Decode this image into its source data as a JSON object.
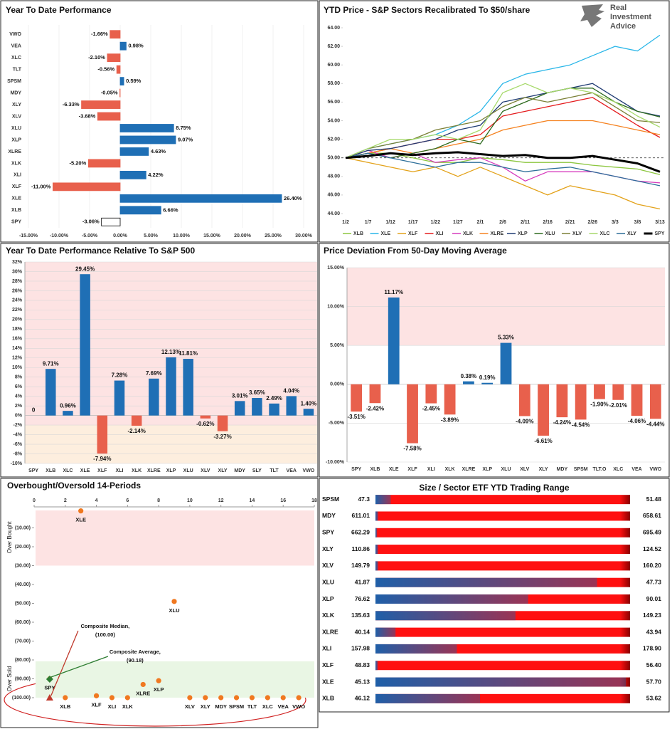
{
  "logo": [
    "Real",
    "Investment",
    "Advice"
  ],
  "chart_data": [
    {
      "type": "bar",
      "orientation": "horizontal",
      "title": "Year To Date Performance",
      "categories": [
        "VWO",
        "VEA",
        "XLC",
        "TLT",
        "SPSM",
        "MDY",
        "XLY",
        "XLV",
        "XLU",
        "XLP",
        "XLRE",
        "XLK",
        "XLI",
        "XLF",
        "XLE",
        "XLB",
        "SPY"
      ],
      "values": [
        -1.66,
        0.98,
        -2.1,
        -0.56,
        0.59,
        -0.05,
        -6.33,
        -3.68,
        8.75,
        9.07,
        4.63,
        -5.2,
        4.22,
        -11.0,
        26.4,
        6.66,
        -3.06
      ],
      "value_labels": [
        "-1.66%",
        "0.98%",
        "-2.10%",
        "-0.56%",
        "0.59%",
        "-0.05%",
        "-6.33%",
        "-3.68%",
        "8.75%",
        "9.07%",
        "4.63%",
        "-5.20%",
        "4.22%",
        "-11.00%",
        "26.40%",
        "6.66%",
        "-3.06%"
      ],
      "colors": [
        "#e8604c",
        "#1f6fb5",
        "#e8604c",
        "#e8604c",
        "#1f6fb5",
        "#e8604c",
        "#e8604c",
        "#e8604c",
        "#1f6fb5",
        "#1f6fb5",
        "#1f6fb5",
        "#e8604c",
        "#1f6fb5",
        "#e8604c",
        "#1f6fb5",
        "#1f6fb5",
        "#ffffff"
      ],
      "xlim": [
        -15,
        30
      ],
      "xticks": [
        {
          "value": -15,
          "label": "-15.00%"
        },
        {
          "value": -10,
          "label": "-10.00%"
        },
        {
          "value": -5,
          "label": "-5.00%"
        },
        {
          "value": 0,
          "label": "0.00%"
        },
        {
          "value": 5,
          "label": "5.00%"
        },
        {
          "value": 10,
          "label": "10.00%"
        },
        {
          "value": 15,
          "label": "15.00%"
        },
        {
          "value": 20,
          "label": "20.00%"
        },
        {
          "value": 25,
          "label": "25.00%"
        },
        {
          "value": 30,
          "label": "30.00%"
        }
      ],
      "grid": true
    },
    {
      "type": "line",
      "title": "YTD Price - S&P Sectors Recalibrated To $50/share",
      "x": [
        "1/2",
        "1/7",
        "1/12",
        "1/17",
        "1/22",
        "1/27",
        "2/1",
        "2/6",
        "2/11",
        "2/16",
        "2/21",
        "2/26",
        "3/3",
        "3/8",
        "3/13"
      ],
      "ylim": [
        44,
        64
      ],
      "yticks": [
        {
          "value": 44,
          "label": "44.00"
        },
        {
          "value": 46,
          "label": "46.00"
        },
        {
          "value": 48,
          "label": "48.00"
        },
        {
          "value": 50,
          "label": "50.00"
        },
        {
          "value": 52,
          "label": "52.00"
        },
        {
          "value": 54,
          "label": "54.00"
        },
        {
          "value": 56,
          "label": "56.00"
        },
        {
          "value": 58,
          "label": "58.00"
        },
        {
          "value": 60,
          "label": "60.00"
        },
        {
          "value": 62,
          "label": "62.00"
        },
        {
          "value": 64,
          "label": "64.00"
        }
      ],
      "reference_line": 50,
      "series": [
        {
          "name": "XLB",
          "color": "#8cc63f",
          "values": [
            50,
            50.5,
            50.5,
            50,
            49.5,
            49.5,
            50,
            49.8,
            49.5,
            49.5,
            49.5,
            49.2,
            49,
            48.8,
            48.2
          ]
        },
        {
          "name": "XLE",
          "color": "#29b6e8",
          "values": [
            50,
            51,
            51.5,
            52,
            52.5,
            53.5,
            55,
            58,
            59,
            59.5,
            60,
            61,
            62,
            61.5,
            63.2
          ]
        },
        {
          "name": "XLF",
          "color": "#e3a21a",
          "values": [
            50,
            49.5,
            49,
            48.5,
            49,
            48,
            49,
            48,
            47,
            46,
            47,
            46.5,
            46,
            45,
            44.5
          ]
        },
        {
          "name": "XLI",
          "color": "#e41a1c",
          "values": [
            50,
            50.5,
            51,
            51.5,
            52,
            52,
            52.5,
            54.5,
            55,
            55.5,
            56,
            56.5,
            55,
            53.5,
            52.2
          ]
        },
        {
          "name": "XLK",
          "color": "#d63bbd",
          "values": [
            50,
            50.8,
            50,
            50.5,
            49.5,
            49.8,
            50,
            49,
            47.5,
            48.5,
            48.5,
            48.5,
            48,
            47.5,
            47.3
          ]
        },
        {
          "name": "XLRE",
          "color": "#f58220",
          "values": [
            50,
            50.5,
            51,
            50.5,
            51,
            51.5,
            52,
            53,
            53.5,
            54,
            54,
            54,
            53.5,
            53,
            52.5
          ]
        },
        {
          "name": "XLP",
          "color": "#1f3b73",
          "values": [
            50,
            50.8,
            51,
            51.5,
            52,
            53,
            53.5,
            56,
            56.5,
            57,
            57.5,
            58,
            56.5,
            55,
            54.5
          ]
        },
        {
          "name": "XLU",
          "color": "#2e6b1f",
          "values": [
            50,
            50.5,
            50,
            50.5,
            51,
            52,
            51.5,
            55,
            56,
            57,
            57.5,
            57.5,
            56,
            55,
            54.4
          ]
        },
        {
          "name": "XLV",
          "color": "#7a7f35",
          "values": [
            50,
            51,
            51.5,
            52,
            53,
            53.5,
            54,
            55.5,
            56.5,
            56,
            56.5,
            57,
            55.5,
            54,
            53.8
          ]
        },
        {
          "name": "XLC",
          "color": "#a6d96a",
          "values": [
            50,
            51,
            52,
            52,
            52.5,
            52,
            53,
            57,
            58,
            57,
            57.5,
            57,
            56,
            54.5,
            53.3
          ]
        },
        {
          "name": "XLY",
          "color": "#2c6e99",
          "values": [
            50,
            50.5,
            50,
            49.5,
            49,
            49.5,
            49.5,
            49,
            48.5,
            48.8,
            49,
            48.5,
            48,
            47.5,
            47.0
          ]
        },
        {
          "name": "SPY",
          "color": "#000000",
          "linewidth": 3,
          "values": [
            50,
            50.2,
            50.5,
            50.3,
            50.5,
            50.6,
            50.4,
            50.2,
            50.3,
            50,
            50,
            50.2,
            49.8,
            49.4,
            48.5
          ]
        }
      ]
    },
    {
      "type": "bar",
      "title": "Year To Date Performance Relative To S&P 500",
      "categories": [
        "SPY",
        "XLB",
        "XLC",
        "XLE",
        "XLF",
        "XLI",
        "XLK",
        "XLRE",
        "XLP",
        "XLU",
        "XLV",
        "XLY",
        "MDY",
        "SLY",
        "TLT",
        "VEA",
        "VWO"
      ],
      "values": [
        0,
        9.71,
        0.96,
        29.45,
        -7.94,
        7.28,
        -2.14,
        7.69,
        12.13,
        11.81,
        -0.62,
        -3.27,
        3.01,
        3.65,
        2.49,
        4.04,
        1.4
      ],
      "value_labels": [
        "0",
        "9.71%",
        "0.96%",
        "29.45%",
        "-7.94%",
        "7.28%",
        "-2.14%",
        "7.69%",
        "12.13%",
        "11.81%",
        "-0.62%",
        "-3.27%",
        "3.01%",
        "3.65%",
        "2.49%",
        "4.04%",
        "1.40%"
      ],
      "positive_color": "#1f6fb5",
      "negative_color": "#e8604c",
      "ylim": [
        -10,
        32
      ],
      "yticks": [
        {
          "value": -10,
          "label": "-10%"
        },
        {
          "value": -8,
          "label": "-8%"
        },
        {
          "value": -6,
          "label": "-6%"
        },
        {
          "value": -4,
          "label": "-4%"
        },
        {
          "value": -2,
          "label": "-2%"
        },
        {
          "value": 0,
          "label": "0%"
        },
        {
          "value": 2,
          "label": "2%"
        },
        {
          "value": 4,
          "label": "4%"
        },
        {
          "value": 6,
          "label": "6%"
        },
        {
          "value": 8,
          "label": "8%"
        },
        {
          "value": 10,
          "label": "10%"
        },
        {
          "value": 12,
          "label": "12%"
        },
        {
          "value": 14,
          "label": "14%"
        },
        {
          "value": 16,
          "label": "16%"
        },
        {
          "value": 18,
          "label": "18%"
        },
        {
          "value": 20,
          "label": "20%"
        },
        {
          "value": 22,
          "label": "22%"
        },
        {
          "value": 24,
          "label": "24%"
        },
        {
          "value": 26,
          "label": "26%"
        },
        {
          "value": 28,
          "label": "28%"
        },
        {
          "value": 30,
          "label": "30%"
        },
        {
          "value": 32,
          "label": "32%"
        }
      ],
      "bands": [
        {
          "from": -2,
          "to": 32,
          "color": "#fde3e3"
        },
        {
          "from": -10,
          "to": -2,
          "color": "#fdeede"
        }
      ],
      "grid": true
    },
    {
      "type": "bar",
      "title": "Price Deviation From 50-Day Moving Average",
      "categories": [
        "SPY",
        "XLB",
        "XLE",
        "XLF",
        "XLI",
        "XLK",
        "XLRE",
        "XLP",
        "XLU",
        "XLV",
        "XLY",
        "MDY",
        "SPSM",
        "TLT.O",
        "XLC",
        "VEA",
        "VWO"
      ],
      "values": [
        -3.51,
        -2.42,
        11.17,
        -7.58,
        -2.45,
        -3.89,
        0.38,
        0.19,
        5.33,
        -4.09,
        -6.61,
        -4.24,
        -4.54,
        -1.9,
        -2.01,
        -4.06,
        -4.44
      ],
      "value_labels": [
        "-3.51%",
        "-2.42%",
        "11.17%",
        "-7.58%",
        "-2.45%",
        "-3.89%",
        "0.38%",
        "0.19%",
        "5.33%",
        "-4.09%",
        "-6.61%",
        "-4.24%",
        "-4.54%",
        "-1.90%",
        "-2.01%",
        "-4.06%",
        "-4.44%"
      ],
      "positive_color": "#1f6fb5",
      "negative_color": "#e8604c",
      "ylim": [
        -10,
        15
      ],
      "yticks": [
        {
          "value": -10,
          "label": "-10.00%"
        },
        {
          "value": -5,
          "label": "-5.00%"
        },
        {
          "value": 0,
          "label": "0.00%"
        },
        {
          "value": 5,
          "label": "5.00%"
        },
        {
          "value": 10,
          "label": "10.00%"
        },
        {
          "value": 15,
          "label": "15.00%"
        }
      ],
      "bands": [
        {
          "from": 5,
          "to": 15,
          "color": "#fde3e3"
        }
      ],
      "grid": true
    },
    {
      "type": "scatter",
      "title": "Overbought/Oversold 14-Periods",
      "labels": [
        "XLE",
        "XLU",
        "XLRE",
        "XLP",
        "SPY",
        "XLB",
        "XLF",
        "XLI",
        "XLK",
        "XLV",
        "XLY",
        "MDY",
        "SPSM",
        "TLT",
        "XLC",
        "VEA",
        "VWO"
      ],
      "x": [
        3,
        9,
        7,
        8,
        1,
        2,
        4,
        5,
        6,
        10,
        11,
        12,
        13,
        14,
        15,
        16,
        17
      ],
      "values": [
        -1,
        -49,
        -93,
        -91,
        -90,
        -100,
        -99,
        -100,
        -100,
        -100,
        -100,
        -100,
        -100,
        -100,
        -100,
        -100,
        -100
      ],
      "color": "#f07820",
      "xlim": [
        0,
        18
      ],
      "xticks": [
        0,
        2,
        4,
        6,
        8,
        10,
        12,
        14,
        16,
        18
      ],
      "ylim": [
        -100,
        0
      ],
      "yticks": [
        {
          "value": -10,
          "label": "(10.00)"
        },
        {
          "value": -20,
          "label": "(20.00)"
        },
        {
          "value": -30,
          "label": "(30.00)"
        },
        {
          "value": -40,
          "label": "(40.00)"
        },
        {
          "value": -50,
          "label": "(50.00)"
        },
        {
          "value": -60,
          "label": "(60.00)"
        },
        {
          "value": -70,
          "label": "(70.00)"
        },
        {
          "value": -80,
          "label": "(80.00)"
        },
        {
          "value": -90,
          "label": "(90.00)"
        },
        {
          "value": -100,
          "label": "(100.00)"
        }
      ],
      "bands": [
        {
          "from": -30,
          "to": 0,
          "color": "#fde3e3",
          "label": "Over Bought",
          "label_color": "#e03030"
        },
        {
          "from": -100,
          "to": -80,
          "color": "#e9f6e4",
          "label": "Over Sold",
          "label_color": "#2e8b2e"
        }
      ],
      "annotations": [
        {
          "text": "Composite Median,",
          "value_label": "(100.00)",
          "x": 1,
          "value": -100,
          "color": "#6fa8dc",
          "marker": "triangle",
          "marker_color": "#c0392b"
        },
        {
          "text": "Composite Average,",
          "value_label": "(90.18)",
          "x": 1,
          "value": -90.18,
          "color": "#00b0f0",
          "marker": "diamond",
          "marker_color": "#2e7d32"
        }
      ]
    },
    {
      "type": "range",
      "title": "Size / Sector ETF YTD Trading Range",
      "categories": [
        "SPSM",
        "MDY",
        "SPY",
        "XLY",
        "XLV",
        "XLU",
        "XLP",
        "XLK",
        "XLRE",
        "XLI",
        "XLF",
        "XLE",
        "XLB"
      ],
      "lows": [
        47.3,
        611.01,
        662.29,
        110.86,
        149.79,
        41.87,
        76.62,
        135.63,
        40.14,
        157.98,
        48.83,
        45.13,
        46.12
      ],
      "low_labels": [
        "47.3",
        "611.01",
        "662.29",
        "110.86",
        "149.79",
        "41.87",
        "76.62",
        "135.63",
        "40.14",
        "157.98",
        "48.83",
        "45.13",
        "46.12"
      ],
      "highs": [
        51.48,
        658.61,
        695.49,
        124.52,
        160.2,
        47.73,
        90.01,
        149.23,
        43.94,
        178.9,
        56.4,
        57.7,
        53.62
      ],
      "high_labels": [
        "51.48",
        "658.61",
        "695.49",
        "124.52",
        "160.20",
        "47.73",
        "90.01",
        "149.23",
        "43.94",
        "178.90",
        "56.40",
        "57.70",
        "53.62"
      ],
      "values": [
        47.55,
        611.5,
        662.5,
        111.0,
        149.9,
        46.97,
        84.65,
        143.11,
        40.44,
        164.67,
        48.9,
        57.5,
        49.2
      ],
      "color": "#ff1010",
      "current_color": "#1f5fa8"
    }
  ]
}
